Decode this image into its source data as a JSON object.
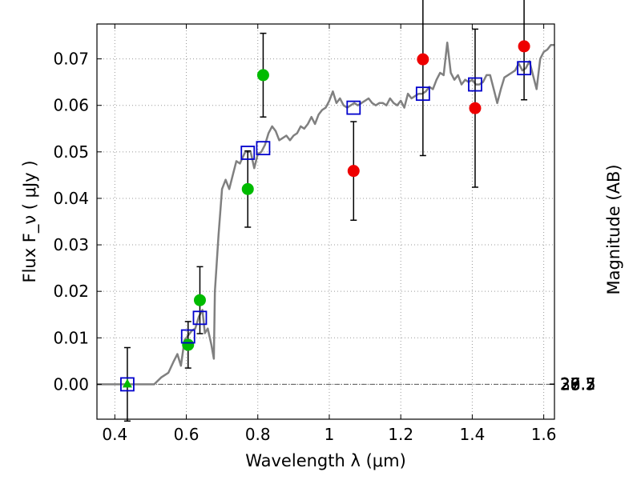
{
  "chart_data": {
    "type": "scatter",
    "xlabel": "Wavelength  λ (μm)",
    "ylabel": "Flux  F_ν  ( μJy )",
    "ylabel_right": "Magnitude (AB)",
    "xlim": [
      0.35,
      1.63
    ],
    "ylim": [
      -0.0075,
      0.0775
    ],
    "grid": true,
    "x_ticks": [
      0.4,
      0.6,
      0.8,
      1,
      1.2,
      1.4,
      1.6
    ],
    "y_ticks": [
      0.0,
      0.01,
      0.02,
      0.03,
      0.04,
      0.05,
      0.06,
      0.07
    ],
    "magnitude_ticks": [
      "26.7",
      "27",
      "27.2",
      "27.5",
      "28",
      "28.5",
      "29",
      "30"
    ],
    "colors": {
      "spectrum": "#808080",
      "model_points": "#0000cc",
      "green_points": "#00bb00",
      "red_points": "#ee0000",
      "error_bars": "#000000",
      "grid": "#999999"
    },
    "spectrum": [
      [
        0.35,
        0.0
      ],
      [
        0.51,
        0.0
      ],
      [
        0.53,
        0.0015
      ],
      [
        0.55,
        0.0025
      ],
      [
        0.565,
        0.005
      ],
      [
        0.575,
        0.0065
      ],
      [
        0.585,
        0.004
      ],
      [
        0.595,
        0.0095
      ],
      [
        0.605,
        0.0105
      ],
      [
        0.615,
        0.0115
      ],
      [
        0.625,
        0.012
      ],
      [
        0.635,
        0.0145
      ],
      [
        0.645,
        0.016
      ],
      [
        0.652,
        0.011
      ],
      [
        0.66,
        0.012
      ],
      [
        0.67,
        0.0085
      ],
      [
        0.677,
        0.0055
      ],
      [
        0.68,
        0.02
      ],
      [
        0.69,
        0.032
      ],
      [
        0.7,
        0.042
      ],
      [
        0.71,
        0.044
      ],
      [
        0.72,
        0.042
      ],
      [
        0.73,
        0.045
      ],
      [
        0.74,
        0.048
      ],
      [
        0.75,
        0.0475
      ],
      [
        0.765,
        0.05
      ],
      [
        0.78,
        0.05
      ],
      [
        0.79,
        0.0465
      ],
      [
        0.8,
        0.0495
      ],
      [
        0.81,
        0.05
      ],
      [
        0.82,
        0.0515
      ],
      [
        0.83,
        0.054
      ],
      [
        0.84,
        0.0555
      ],
      [
        0.85,
        0.0545
      ],
      [
        0.86,
        0.0525
      ],
      [
        0.87,
        0.053
      ],
      [
        0.88,
        0.0535
      ],
      [
        0.89,
        0.0525
      ],
      [
        0.9,
        0.0535
      ],
      [
        0.91,
        0.054
      ],
      [
        0.92,
        0.0555
      ],
      [
        0.93,
        0.055
      ],
      [
        0.94,
        0.056
      ],
      [
        0.95,
        0.0575
      ],
      [
        0.96,
        0.056
      ],
      [
        0.97,
        0.058
      ],
      [
        0.98,
        0.059
      ],
      [
        0.99,
        0.0595
      ],
      [
        1.0,
        0.061
      ],
      [
        1.01,
        0.063
      ],
      [
        1.02,
        0.0605
      ],
      [
        1.03,
        0.0615
      ],
      [
        1.04,
        0.06
      ],
      [
        1.05,
        0.0595
      ],
      [
        1.06,
        0.06
      ],
      [
        1.07,
        0.0605
      ],
      [
        1.08,
        0.06
      ],
      [
        1.09,
        0.0605
      ],
      [
        1.1,
        0.061
      ],
      [
        1.11,
        0.0615
      ],
      [
        1.12,
        0.0605
      ],
      [
        1.13,
        0.06
      ],
      [
        1.14,
        0.0605
      ],
      [
        1.15,
        0.0605
      ],
      [
        1.16,
        0.06
      ],
      [
        1.17,
        0.0615
      ],
      [
        1.18,
        0.0605
      ],
      [
        1.19,
        0.06
      ],
      [
        1.2,
        0.061
      ],
      [
        1.21,
        0.0595
      ],
      [
        1.22,
        0.0625
      ],
      [
        1.23,
        0.0615
      ],
      [
        1.24,
        0.062
      ],
      [
        1.25,
        0.0625
      ],
      [
        1.26,
        0.0625
      ],
      [
        1.27,
        0.063
      ],
      [
        1.28,
        0.064
      ],
      [
        1.29,
        0.0635
      ],
      [
        1.3,
        0.0655
      ],
      [
        1.31,
        0.067
      ],
      [
        1.32,
        0.0665
      ],
      [
        1.33,
        0.0735
      ],
      [
        1.34,
        0.067
      ],
      [
        1.35,
        0.0655
      ],
      [
        1.36,
        0.0665
      ],
      [
        1.37,
        0.0645
      ],
      [
        1.38,
        0.0655
      ],
      [
        1.39,
        0.065
      ],
      [
        1.4,
        0.0655
      ],
      [
        1.41,
        0.0645
      ],
      [
        1.42,
        0.0645
      ],
      [
        1.43,
        0.065
      ],
      [
        1.44,
        0.0665
      ],
      [
        1.45,
        0.0665
      ],
      [
        1.46,
        0.0635
      ],
      [
        1.47,
        0.0605
      ],
      [
        1.48,
        0.0635
      ],
      [
        1.49,
        0.066
      ],
      [
        1.5,
        0.0665
      ],
      [
        1.51,
        0.067
      ],
      [
        1.52,
        0.0675
      ],
      [
        1.53,
        0.069
      ],
      [
        1.54,
        0.0675
      ],
      [
        1.55,
        0.068
      ],
      [
        1.56,
        0.0695
      ],
      [
        1.57,
        0.0665
      ],
      [
        1.58,
        0.0635
      ],
      [
        1.59,
        0.07
      ],
      [
        1.6,
        0.0715
      ],
      [
        1.61,
        0.072
      ],
      [
        1.62,
        0.073
      ],
      [
        1.63,
        0.073
      ]
    ],
    "model_points": [
      {
        "x": 0.435,
        "y": 0.0
      },
      {
        "x": 0.605,
        "y": 0.0103
      },
      {
        "x": 0.638,
        "y": 0.0143
      },
      {
        "x": 0.772,
        "y": 0.0498
      },
      {
        "x": 0.815,
        "y": 0.0508
      },
      {
        "x": 1.068,
        "y": 0.0595
      },
      {
        "x": 1.262,
        "y": 0.0625
      },
      {
        "x": 1.408,
        "y": 0.0645
      },
      {
        "x": 1.545,
        "y": 0.068
      }
    ],
    "observed_points": [
      {
        "x": 0.435,
        "y": 0.0,
        "err": 0.0079,
        "marker": "triangle",
        "color": "green"
      },
      {
        "x": 0.605,
        "y": 0.0085,
        "err": 0.005,
        "marker": "circle",
        "color": "green"
      },
      {
        "x": 0.638,
        "y": 0.0181,
        "err": 0.0072,
        "marker": "circle",
        "color": "green"
      },
      {
        "x": 0.772,
        "y": 0.042,
        "err": 0.0082,
        "marker": "circle",
        "color": "green"
      },
      {
        "x": 0.815,
        "y": 0.0665,
        "err": 0.009,
        "marker": "circle",
        "color": "green"
      },
      {
        "x": 1.068,
        "y": 0.0459,
        "err": 0.0106,
        "marker": "circle",
        "color": "red"
      },
      {
        "x": 1.262,
        "y": 0.0699,
        "err": 0.0207,
        "marker": "circle",
        "color": "red"
      },
      {
        "x": 1.408,
        "y": 0.0594,
        "err": 0.017,
        "marker": "circle",
        "color": "red"
      },
      {
        "x": 1.545,
        "y": 0.0727,
        "err": 0.0115,
        "marker": "circle",
        "color": "red"
      }
    ]
  }
}
